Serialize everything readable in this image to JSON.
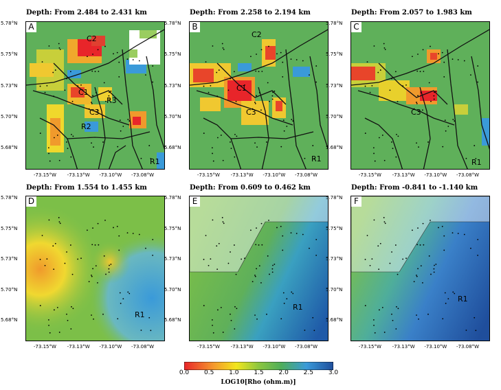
{
  "panels": [
    {
      "letter": "A",
      "title": "Depth: From  2.484 to  2.431 km",
      "labels": [
        "C2",
        "C1",
        "C3",
        "R3",
        "R2",
        "R1"
      ]
    },
    {
      "letter": "B",
      "title": "Depth: From  2.258 to  2.194 km",
      "labels": [
        "C2",
        "C1",
        "C3",
        "R1"
      ]
    },
    {
      "letter": "C",
      "title": "Depth: From  2.057 to  1.983 km",
      "labels": [
        "C3",
        "R1"
      ]
    },
    {
      "letter": "D",
      "title": "Depth: From  1.554 to  1.455 km",
      "labels": [
        "R1"
      ]
    },
    {
      "letter": "E",
      "title": "Depth: From  0.609 to  0.462 km",
      "labels": [
        "R1"
      ]
    },
    {
      "letter": "F",
      "title": "Depth: From -0.841 to -1.140 km",
      "labels": [
        "R1"
      ]
    }
  ],
  "y_ticks": [
    "5.78°N",
    "5.75°N",
    "5.73°N",
    "5.70°N",
    "5.68°N"
  ],
  "x_ticks": [
    "-73.15°W",
    "-73.13°W",
    "-73.10°W",
    "-73.08°W"
  ],
  "colorbar": {
    "ticks": [
      "0.0",
      "0.5",
      "1.0",
      "1.5",
      "2.0",
      "2.5",
      "3.0"
    ],
    "title": "LOG10[Rho (ohm.m)]",
    "colors": [
      "#e8252a",
      "#f59a2c",
      "#f2e61d",
      "#8cc63f",
      "#4fae5a",
      "#3a9ad9",
      "#1f4e9c"
    ]
  }
}
